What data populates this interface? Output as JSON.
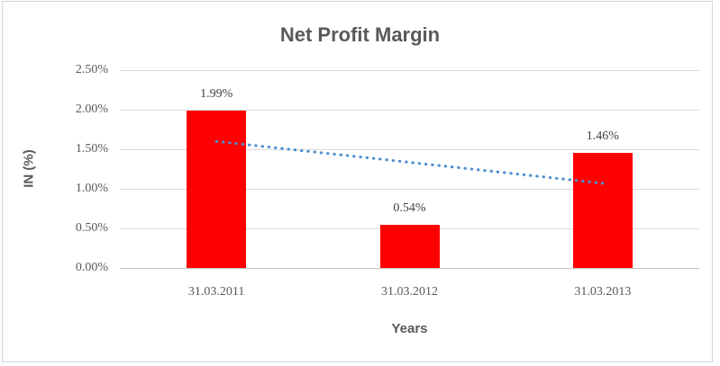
{
  "chart_data": {
    "type": "bar",
    "title": "Net Profit Margin",
    "xlabel": "Years",
    "ylabel": "IN (%)",
    "categories": [
      "31.03.2011",
      "31.03.2012",
      "31.03.2013"
    ],
    "values": [
      1.99,
      0.54,
      1.46
    ],
    "data_labels": [
      "1.99%",
      "0.54%",
      "1.46%"
    ],
    "y_ticks": [
      {
        "value": 0.0,
        "label": "0.00%"
      },
      {
        "value": 0.5,
        "label": "0.50%"
      },
      {
        "value": 1.0,
        "label": "1.00%"
      },
      {
        "value": 1.5,
        "label": "1.50%"
      },
      {
        "value": 2.0,
        "label": "2.00%"
      },
      {
        "value": 2.5,
        "label": "2.50%"
      }
    ],
    "ylim": [
      0,
      2.5
    ],
    "unit": "%",
    "grid": true,
    "legend": "none",
    "bar_color": "#ff0000",
    "trendline": {
      "type": "linear",
      "style": "dotted",
      "color": "#4e8fd0",
      "start_value": 1.6,
      "end_value": 1.07
    }
  },
  "colors": {
    "title_text": "#595959",
    "tick_text": "#595959",
    "data_label_text": "#404040",
    "gridline": "#d9d9d9",
    "frame_border": "#d4d4d4",
    "background": "#ffffff"
  }
}
